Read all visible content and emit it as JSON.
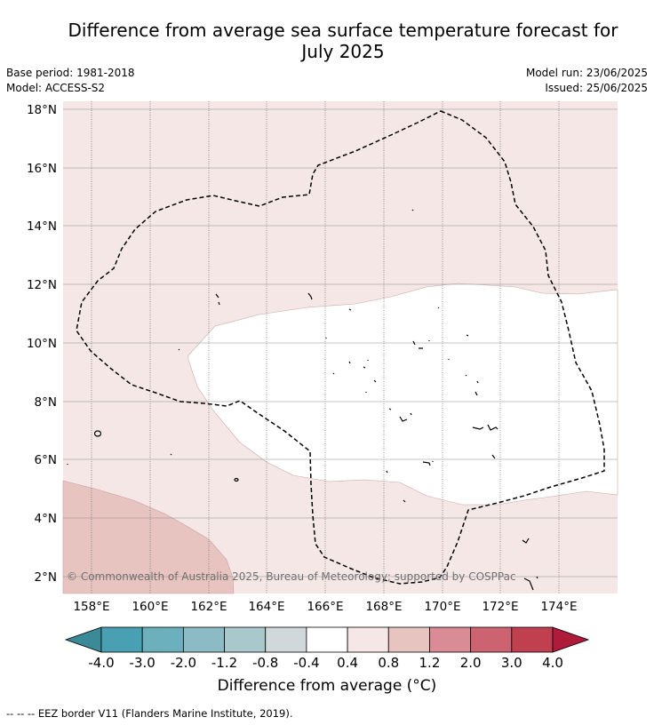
{
  "title_line1": "Difference from average sea surface temperature forecast for",
  "title_line2": "July 2025",
  "base_period": "Base period: 1981-2018",
  "model": "Model: ACCESS-S2",
  "model_run": "Model run: 23/06/2025",
  "issued": "Issued: 25/06/2025",
  "copyright": "© Commonwealth of Australia 2025, Bureau of Meteorology; supported by COSPPac",
  "map": {
    "lon_ticks": [
      "158°E",
      "160°E",
      "162°E",
      "164°E",
      "166°E",
      "168°E",
      "170°E",
      "172°E",
      "174°E"
    ],
    "lat_ticks": [
      "18°N",
      "16°N",
      "14°N",
      "12°N",
      "10°N",
      "8°N",
      "6°N",
      "4°N",
      "2°N"
    ],
    "lon_range": [
      157,
      175.9
    ],
    "lat_range": [
      1.4,
      18.3
    ],
    "grid": true
  },
  "colorbar": {
    "labels": [
      "-4.0",
      "-3.0",
      "-2.0",
      "-1.2",
      "-0.8",
      "-0.4",
      "0.4",
      "0.8",
      "1.2",
      "2.0",
      "3.0",
      "4.0"
    ],
    "under_color": "#3a8a98",
    "colors": [
      "#4aa0b3",
      "#6cafbd",
      "#8cbac5",
      "#a8c8cc",
      "#d0d8dc",
      "#ffffff",
      "#f5e7e6",
      "#e8c4c1",
      "#d98c95",
      "#cd6370",
      "#c04050"
    ],
    "over_color": "#b01a3b",
    "title": "Difference from average (°C)"
  },
  "footer": "-- -- -- EEZ border V11 (Flanders Marine Institute, 2019)."
}
